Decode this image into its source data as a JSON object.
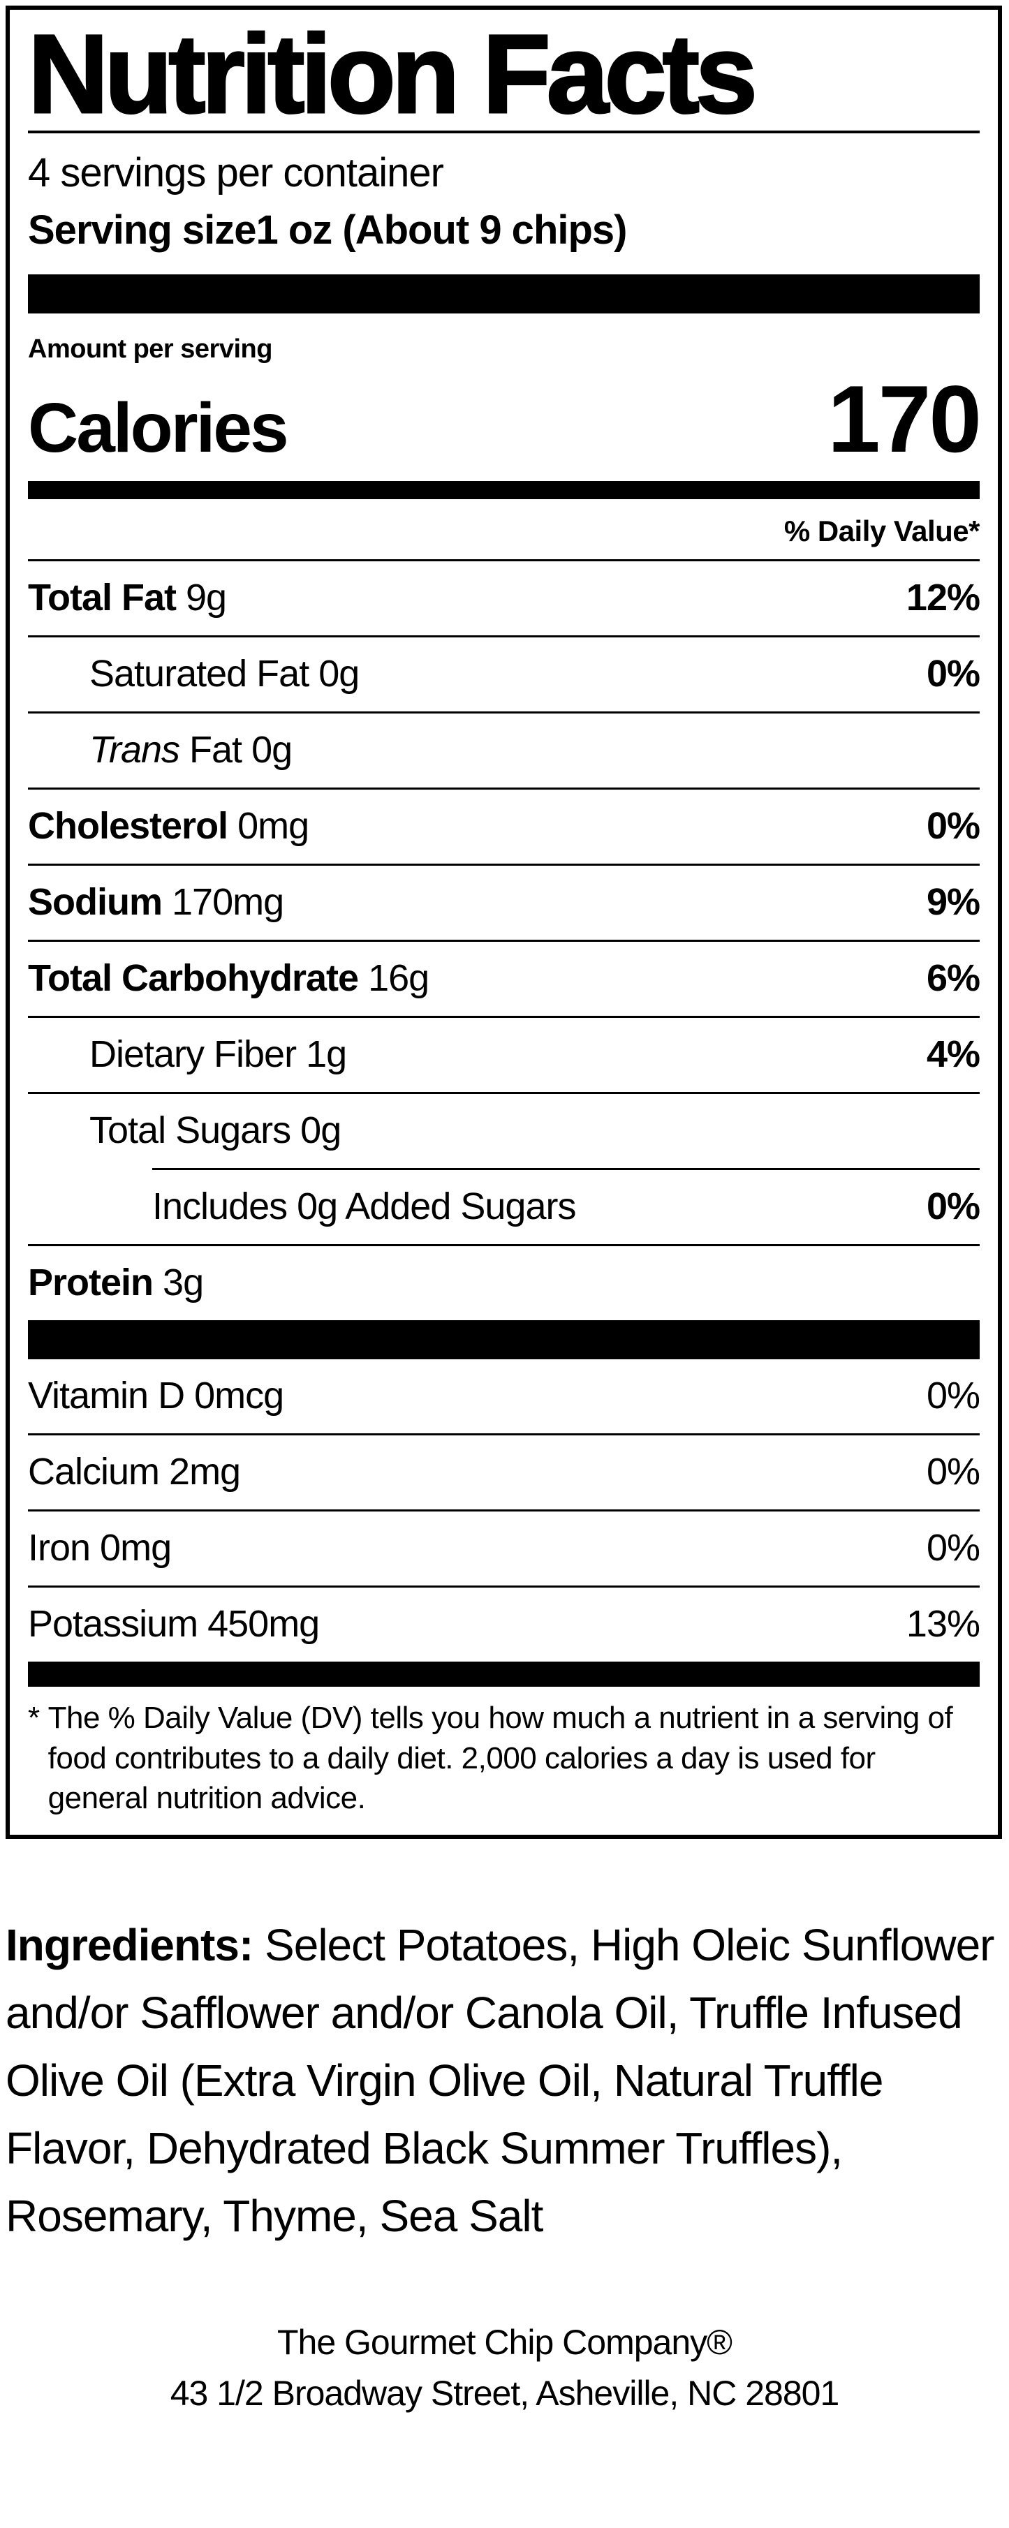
{
  "label": {
    "title": "Nutrition Facts",
    "servings_per_container": "4 servings per container",
    "serving_size_label": "Serving size",
    "serving_size_value": "1 oz (About 9 chips)",
    "amount_per_serving": "Amount per serving",
    "calories_label": "Calories",
    "calories_value": "170",
    "daily_value_header": "% Daily Value*",
    "rows": [
      {
        "name": "Total Fat",
        "amount": "9g",
        "dv": "12%"
      },
      {
        "name": "Saturated Fat",
        "amount": "0g",
        "dv": "0%"
      },
      {
        "name": "Trans",
        "name2": " Fat",
        "amount": "0g",
        "dv": ""
      },
      {
        "name": "Cholesterol",
        "amount": "0mg",
        "dv": "0%"
      },
      {
        "name": "Sodium",
        "amount": "170mg",
        "dv": "9%"
      },
      {
        "name": "Total Carbohydrate",
        "amount": "16g",
        "dv": "6%"
      },
      {
        "name": "Dietary Fiber",
        "amount": "1g",
        "dv": "4%"
      },
      {
        "name": "Total Sugars",
        "amount": "0g",
        "dv": ""
      },
      {
        "name": "Includes 0g Added Sugars",
        "amount": "",
        "dv": "0%"
      },
      {
        "name": "Protein",
        "amount": "3g",
        "dv": ""
      }
    ],
    "vitamins": [
      {
        "name": "Vitamin D 0mcg",
        "dv": "0%"
      },
      {
        "name": "Calcium 2mg",
        "dv": "0%"
      },
      {
        "name": "Iron 0mg",
        "dv": "0%"
      },
      {
        "name": "Potassium 450mg",
        "dv": "13%"
      }
    ],
    "footnote_marker": "*",
    "footnote": "The % Daily Value (DV) tells you how much a nutrient in a serving of food contributes to a daily diet. 2,000 calories a day is used for general nutrition advice."
  },
  "ingredients": {
    "label": "Ingredients:",
    "text": " Select Potatoes, High Oleic Sunflower and/or Safflower and/or Canola Oil, Truffle Infused Olive Oil (Extra Virgin Olive Oil, Natural Truffle Flavor, Dehydrated Black Summer Truffles), Rosemary, Thyme, Sea Salt"
  },
  "footer": {
    "company": "The Gourmet Chip Company®",
    "address": "43 1/2 Broadway Street, Asheville, NC 28801"
  },
  "colors": {
    "ink": "#000000",
    "paper": "#ffffff"
  }
}
